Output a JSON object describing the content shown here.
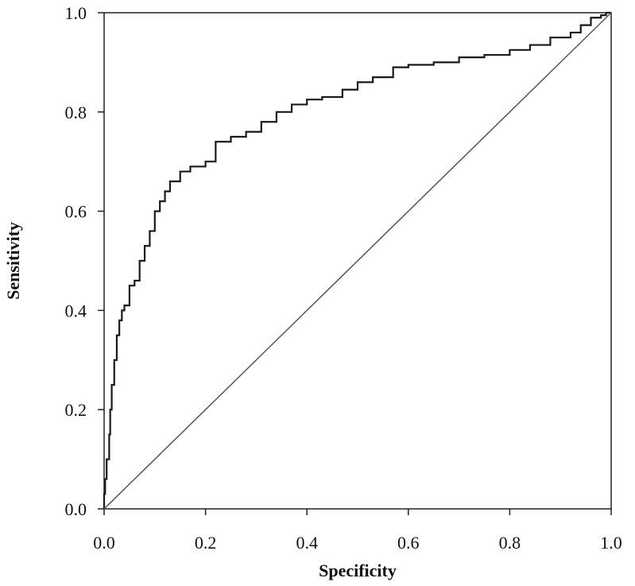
{
  "chart_data": {
    "type": "line",
    "title": "",
    "xlabel": "Specificity",
    "ylabel": "Sensitivity",
    "xlim": [
      0,
      1
    ],
    "ylim": [
      0,
      1
    ],
    "x_ticks": [
      "0.0",
      "0.2",
      "0.4",
      "0.6",
      "0.8",
      "1.0"
    ],
    "y_ticks": [
      "0.0",
      "0.2",
      "0.4",
      "0.6",
      "0.8",
      "1.0"
    ],
    "grid": false,
    "legend": "none",
    "series": [
      {
        "color": "#1a1a1a",
        "points": [
          [
            0.0,
            0.0
          ],
          [
            0.002,
            0.03
          ],
          [
            0.005,
            0.06
          ],
          [
            0.01,
            0.1
          ],
          [
            0.012,
            0.15
          ],
          [
            0.015,
            0.2
          ],
          [
            0.02,
            0.25
          ],
          [
            0.025,
            0.3
          ],
          [
            0.03,
            0.35
          ],
          [
            0.035,
            0.38
          ],
          [
            0.04,
            0.4
          ],
          [
            0.05,
            0.41
          ],
          [
            0.06,
            0.45
          ],
          [
            0.07,
            0.46
          ],
          [
            0.08,
            0.5
          ],
          [
            0.09,
            0.53
          ],
          [
            0.1,
            0.56
          ],
          [
            0.11,
            0.6
          ],
          [
            0.12,
            0.62
          ],
          [
            0.13,
            0.64
          ],
          [
            0.15,
            0.66
          ],
          [
            0.17,
            0.68
          ],
          [
            0.2,
            0.69
          ],
          [
            0.22,
            0.7
          ],
          [
            0.25,
            0.74
          ],
          [
            0.28,
            0.75
          ],
          [
            0.31,
            0.76
          ],
          [
            0.34,
            0.78
          ],
          [
            0.37,
            0.8
          ],
          [
            0.4,
            0.815
          ],
          [
            0.43,
            0.825
          ],
          [
            0.47,
            0.83
          ],
          [
            0.5,
            0.845
          ],
          [
            0.53,
            0.86
          ],
          [
            0.57,
            0.87
          ],
          [
            0.6,
            0.89
          ],
          [
            0.65,
            0.895
          ],
          [
            0.7,
            0.9
          ],
          [
            0.75,
            0.91
          ],
          [
            0.8,
            0.915
          ],
          [
            0.84,
            0.925
          ],
          [
            0.88,
            0.935
          ],
          [
            0.92,
            0.95
          ],
          [
            0.94,
            0.96
          ],
          [
            0.96,
            0.975
          ],
          [
            0.98,
            0.99
          ],
          [
            0.99,
            0.995
          ],
          [
            1.0,
            1.0
          ]
        ]
      },
      {
        "color": "#555555",
        "points": [
          [
            0.0,
            0.0
          ],
          [
            1.0,
            1.0
          ]
        ]
      }
    ]
  }
}
